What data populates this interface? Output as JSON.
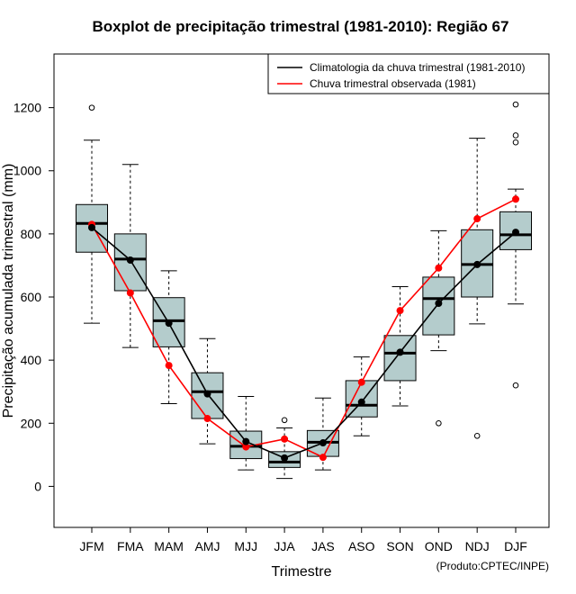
{
  "chart_data": {
    "type": "boxplot",
    "title": "Boxplot de precipitação trimestral (1981-2010): Região 67",
    "xlabel": "Trimestre",
    "ylabel": "Precipitação acumulada trimestral (mm)",
    "credit": "(Produto:CPTEC/INPE)",
    "ylim": [
      -130,
      1370
    ],
    "yticks": [
      0,
      200,
      400,
      600,
      800,
      1000,
      1200
    ],
    "ytick_labels": [
      "0",
      "200",
      "400",
      "600",
      "800",
      "1000",
      "1200"
    ],
    "categories": [
      "JFM",
      "FMA",
      "MAM",
      "AMJ",
      "MJJ",
      "JJA",
      "JAS",
      "ASO",
      "SON",
      "OND",
      "NDJ",
      "DJF"
    ],
    "boxes": [
      {
        "whisker_low": 517,
        "q1": 742,
        "median": 833,
        "q3": 893,
        "whisker_high": 1097,
        "outliers": [
          1200
        ]
      },
      {
        "whisker_low": 440,
        "q1": 620,
        "median": 720,
        "q3": 800,
        "whisker_high": 1020,
        "outliers": []
      },
      {
        "whisker_low": 262,
        "q1": 442,
        "median": 525,
        "q3": 598,
        "whisker_high": 683,
        "outliers": []
      },
      {
        "whisker_low": 135,
        "q1": 215,
        "median": 300,
        "q3": 360,
        "whisker_high": 468,
        "outliers": []
      },
      {
        "whisker_low": 52,
        "q1": 88,
        "median": 127,
        "q3": 175,
        "whisker_high": 285,
        "outliers": []
      },
      {
        "whisker_low": 25,
        "q1": 60,
        "median": 77,
        "q3": 110,
        "whisker_high": 185,
        "outliers": [
          210
        ]
      },
      {
        "whisker_low": 52,
        "q1": 95,
        "median": 140,
        "q3": 177,
        "whisker_high": 280,
        "outliers": []
      },
      {
        "whisker_low": 160,
        "q1": 220,
        "median": 257,
        "q3": 335,
        "whisker_high": 410,
        "outliers": []
      },
      {
        "whisker_low": 255,
        "q1": 335,
        "median": 422,
        "q3": 478,
        "whisker_high": 633,
        "outliers": []
      },
      {
        "whisker_low": 430,
        "q1": 480,
        "median": 595,
        "q3": 663,
        "whisker_high": 810,
        "outliers": [
          200
        ]
      },
      {
        "whisker_low": 515,
        "q1": 600,
        "median": 703,
        "q3": 813,
        "whisker_high": 1103,
        "outliers": [
          160
        ]
      },
      {
        "whisker_low": 578,
        "q1": 750,
        "median": 797,
        "q3": 870,
        "whisker_high": 942,
        "outliers": [
          1210,
          1112,
          1090,
          320
        ]
      }
    ],
    "series": [
      {
        "name": "Climatologia da chuva trimestral (1981-2010)",
        "color": "#000000",
        "values": [
          820,
          717,
          517,
          293,
          142,
          90,
          138,
          267,
          425,
          580,
          703,
          805
        ]
      },
      {
        "name": "Chuva trimestral observada (1981)",
        "color": "#ff0000",
        "values": [
          830,
          613,
          383,
          215,
          125,
          150,
          92,
          330,
          557,
          692,
          848,
          910
        ]
      }
    ],
    "box_fill": "#b4cccc",
    "legend_position": "top-right"
  }
}
